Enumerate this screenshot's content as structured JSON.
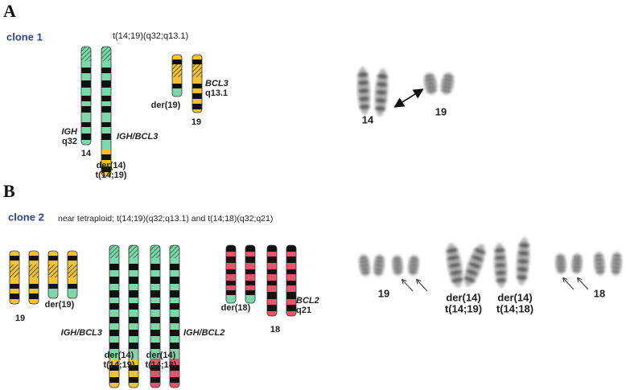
{
  "panel_a": {
    "label": "A",
    "clone": "clone 1",
    "translocation": "t(14;19)(q32;q13.1)",
    "ideogram": {
      "chr14_gene": "IGH",
      "chr14_band": "q32",
      "chr14": "14",
      "fusion": "IGH/BCL3",
      "der14": [
        "der(14)",
        "t(14;19)"
      ],
      "der19": "der(19)",
      "chr19_gene": "BCL3",
      "chr19_band": "q13.1",
      "chr19": "19"
    },
    "karyotype": {
      "chr14": "14",
      "chr19": "19"
    }
  },
  "panel_b": {
    "label": "B",
    "clone": "clone 2",
    "note": "near tetraploid; t(14;19)(q32;q13.1) and t(14;18)(q32;q21)",
    "ideogram": {
      "chr19": "19",
      "der19": "der(19)",
      "fusion_bcl3": "IGH/BCL3",
      "fusion_bcl2": "IGH/BCL2",
      "der14_19": [
        "der(14)",
        "t(14;19)"
      ],
      "der14_18": [
        "der(14)",
        "t(14;18)"
      ],
      "der18": "der(18)",
      "chr18_gene": "BCL2",
      "chr18_band": "q21",
      "chr18": "18"
    },
    "karyotype": {
      "chr19": "19",
      "der14_19": [
        "der(14)",
        "t(14;19)"
      ],
      "der14_18": [
        "der(14)",
        "t(14;18)"
      ],
      "chr18": "18"
    }
  }
}
